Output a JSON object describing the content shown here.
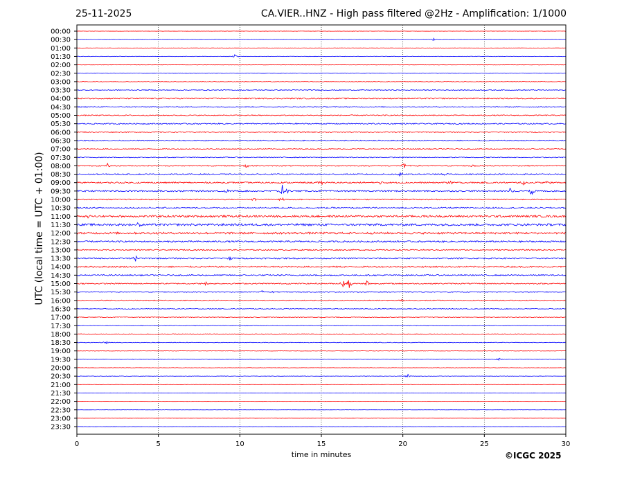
{
  "header": {
    "date": "25-11-2025",
    "title": "CA.VIER..HNZ - High pass filtered @2Hz - Amplification: 1/1000"
  },
  "footer": {
    "copyright": "©ICGC 2025"
  },
  "colors": {
    "red": "#ff0000",
    "blue": "#0000ff",
    "grid": "#000000"
  },
  "chart_data": {
    "type": "line",
    "title": "CA.VIER..HNZ - High pass filtered @2Hz - Amplification: 1/1000",
    "xlabel": "time in minutes",
    "ylabel": "UTC (local time = UTC + 01:00)",
    "xlim": [
      0,
      30
    ],
    "xticks": [
      0,
      5,
      10,
      15,
      20,
      25,
      30
    ],
    "grid": "vertical dotted at x ticks",
    "row_colors": [
      "red",
      "blue"
    ],
    "rows": [
      {
        "label": "00:00",
        "noise": 0.2
      },
      {
        "label": "00:30",
        "noise": 0.2
      },
      {
        "label": "01:00",
        "noise": 0.2
      },
      {
        "label": "01:30",
        "noise": 0.3
      },
      {
        "label": "02:00",
        "noise": 0.25
      },
      {
        "label": "02:30",
        "noise": 0.3
      },
      {
        "label": "03:00",
        "noise": 0.4
      },
      {
        "label": "03:30",
        "noise": 0.6
      },
      {
        "label": "04:00",
        "noise": 0.8
      },
      {
        "label": "04:30",
        "noise": 0.7
      },
      {
        "label": "05:00",
        "noise": 0.7
      },
      {
        "label": "05:30",
        "noise": 0.8
      },
      {
        "label": "06:00",
        "noise": 0.7
      },
      {
        "label": "06:30",
        "noise": 0.7
      },
      {
        "label": "07:00",
        "noise": 0.6
      },
      {
        "label": "07:30",
        "noise": 0.6
      },
      {
        "label": "08:00",
        "noise": 0.7
      },
      {
        "label": "08:30",
        "noise": 0.8
      },
      {
        "label": "09:00",
        "noise": 1.0
      },
      {
        "label": "09:30",
        "noise": 1.0
      },
      {
        "label": "10:00",
        "noise": 0.8
      },
      {
        "label": "10:30",
        "noise": 1.0
      },
      {
        "label": "11:00",
        "noise": 1.4
      },
      {
        "label": "11:30",
        "noise": 1.5
      },
      {
        "label": "12:00",
        "noise": 1.4
      },
      {
        "label": "12:30",
        "noise": 1.1
      },
      {
        "label": "13:00",
        "noise": 0.8
      },
      {
        "label": "13:30",
        "noise": 0.9
      },
      {
        "label": "14:00",
        "noise": 1.0
      },
      {
        "label": "14:30",
        "noise": 0.9
      },
      {
        "label": "15:00",
        "noise": 0.8
      },
      {
        "label": "15:30",
        "noise": 0.6
      },
      {
        "label": "16:00",
        "noise": 0.6
      },
      {
        "label": "16:30",
        "noise": 0.5
      },
      {
        "label": "17:00",
        "noise": 0.5
      },
      {
        "label": "17:30",
        "noise": 0.4
      },
      {
        "label": "18:00",
        "noise": 0.4
      },
      {
        "label": "18:30",
        "noise": 0.4
      },
      {
        "label": "19:00",
        "noise": 0.3
      },
      {
        "label": "19:30",
        "noise": 0.3
      },
      {
        "label": "20:00",
        "noise": 0.25
      },
      {
        "label": "20:30",
        "noise": 0.25
      },
      {
        "label": "21:00",
        "noise": 0.2
      },
      {
        "label": "21:30",
        "noise": 0.15
      },
      {
        "label": "22:00",
        "noise": 0.15
      },
      {
        "label": "22:30",
        "noise": 0.15
      },
      {
        "label": "23:00",
        "noise": 0.15
      },
      {
        "label": "23:30",
        "noise": 0.15
      }
    ],
    "events": [
      {
        "row": 1,
        "t": 21.9,
        "amp": 2
      },
      {
        "row": 3,
        "t": 9.7,
        "amp": 3
      },
      {
        "row": 16,
        "t": 1.9,
        "amp": 4
      },
      {
        "row": 16,
        "t": 10.4,
        "amp": 3
      },
      {
        "row": 16,
        "t": 20.1,
        "amp": 5
      },
      {
        "row": 16,
        "t": 24.3,
        "amp": 3
      },
      {
        "row": 17,
        "t": 19.8,
        "amp": 4
      },
      {
        "row": 17,
        "t": 22.5,
        "amp": 3
      },
      {
        "row": 18,
        "t": 15.0,
        "amp": 5
      },
      {
        "row": 18,
        "t": 18.6,
        "amp": 3
      },
      {
        "row": 18,
        "t": 22.9,
        "amp": 4
      },
      {
        "row": 18,
        "t": 27.4,
        "amp": 5
      },
      {
        "row": 18,
        "t": 28.9,
        "amp": 3
      },
      {
        "row": 19,
        "t": 9.2,
        "amp": 5
      },
      {
        "row": 19,
        "t": 12.6,
        "amp": 8
      },
      {
        "row": 19,
        "t": 12.9,
        "amp": 5
      },
      {
        "row": 19,
        "t": 26.6,
        "amp": 6
      },
      {
        "row": 19,
        "t": 27.9,
        "amp": 7
      },
      {
        "row": 20,
        "t": 10.9,
        "amp": 3
      },
      {
        "row": 20,
        "t": 12.6,
        "amp": 4
      },
      {
        "row": 22,
        "t": 0.6,
        "amp": 3
      },
      {
        "row": 23,
        "t": 3.7,
        "amp": 6
      },
      {
        "row": 27,
        "t": 3.6,
        "amp": 5
      },
      {
        "row": 27,
        "t": 9.4,
        "amp": 4
      },
      {
        "row": 30,
        "t": 7.9,
        "amp": 3
      },
      {
        "row": 30,
        "t": 16.3,
        "amp": 6
      },
      {
        "row": 30,
        "t": 16.7,
        "amp": 8
      },
      {
        "row": 30,
        "t": 17.8,
        "amp": 6
      },
      {
        "row": 31,
        "t": 11.3,
        "amp": 3
      },
      {
        "row": 31,
        "t": 11.9,
        "amp": 3
      },
      {
        "row": 32,
        "t": 19.8,
        "amp": 3
      },
      {
        "row": 37,
        "t": 1.8,
        "amp": 3
      },
      {
        "row": 39,
        "t": 25.9,
        "amp": 3
      },
      {
        "row": 41,
        "t": 20.3,
        "amp": 3
      }
    ]
  }
}
